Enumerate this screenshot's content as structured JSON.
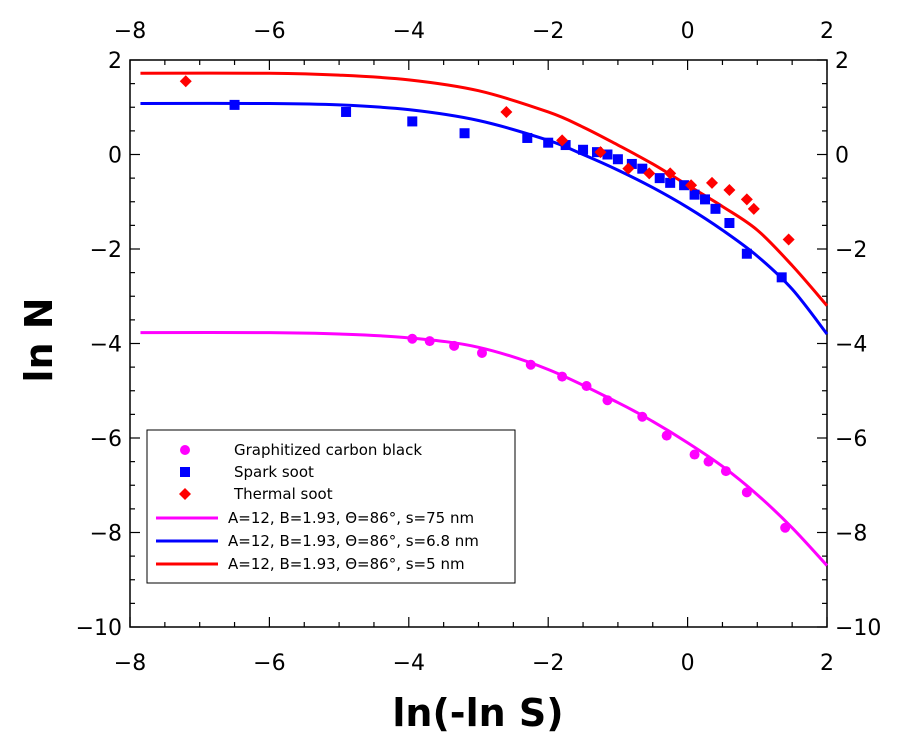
{
  "chart_data": {
    "type": "scatter",
    "xlabel": "ln(-ln S)",
    "ylabel": "ln N",
    "xlim": [
      -8,
      2
    ],
    "ylim": [
      -10,
      2
    ],
    "x_ticks": [
      -8,
      -6,
      -4,
      -2,
      0,
      2
    ],
    "y_ticks": [
      -10,
      -8,
      -6,
      -4,
      -2,
      0,
      2
    ],
    "x_tick_labels": [
      "−8",
      "−6",
      "−4",
      "−2",
      "0",
      "2"
    ],
    "y_tick_labels_left": [
      "−10",
      "−8",
      "−6",
      "−4",
      "−2",
      "0",
      "2"
    ],
    "y_tick_labels_right": [
      "−10",
      "−8",
      "−6",
      "−4",
      "−2",
      "0",
      "2"
    ],
    "grid": false,
    "legend_position": "bottom-left",
    "series": [
      {
        "name": "Graphitized carbon black",
        "kind": "points",
        "marker": "circle",
        "color": "#ff00ff",
        "x": [
          -3.95,
          -3.7,
          -3.35,
          -2.95,
          -2.25,
          -1.8,
          -1.45,
          -1.15,
          -0.65,
          -0.3,
          0.1,
          0.3,
          0.55,
          0.85,
          1.4
        ],
        "y": [
          -3.9,
          -3.95,
          -4.05,
          -4.2,
          -4.45,
          -4.7,
          -4.9,
          -5.2,
          -5.55,
          -5.95,
          -6.35,
          -6.5,
          -6.7,
          -7.15,
          -7.9
        ]
      },
      {
        "name": "Spark soot",
        "kind": "points",
        "marker": "square",
        "color": "#0000ff",
        "x": [
          -6.5,
          -4.9,
          -3.95,
          -3.2,
          -2.3,
          -2.0,
          -1.75,
          -1.5,
          -1.3,
          -1.15,
          -1.0,
          -0.8,
          -0.65,
          -0.4,
          -0.25,
          -0.05,
          0.1,
          0.25,
          0.4,
          0.6,
          0.85,
          1.35
        ],
        "y": [
          1.05,
          0.9,
          0.7,
          0.45,
          0.35,
          0.25,
          0.2,
          0.1,
          0.05,
          0.0,
          -0.1,
          -0.2,
          -0.3,
          -0.5,
          -0.6,
          -0.65,
          -0.85,
          -0.95,
          -1.15,
          -1.45,
          -2.1,
          -2.6
        ]
      },
      {
        "name": "Thermal soot",
        "kind": "points",
        "marker": "diamond",
        "color": "#ff0000",
        "x": [
          -7.2,
          -2.6,
          -1.8,
          -1.25,
          -0.85,
          -0.55,
          -0.25,
          0.05,
          0.35,
          0.6,
          0.85,
          0.95,
          1.45
        ],
        "y": [
          1.55,
          0.9,
          0.3,
          0.05,
          -0.3,
          -0.4,
          -0.4,
          -0.65,
          -0.6,
          -0.75,
          -0.95,
          -1.15,
          -1.8
        ]
      },
      {
        "name": "A=12, B=1.93, Θ=86°, s=75 nm",
        "kind": "line",
        "color": "#ff00ff",
        "x": [
          -7.85,
          -6,
          -5,
          -4,
          -3,
          -2,
          -1,
          -0.5,
          0,
          0.5,
          1,
          1.5,
          2
        ],
        "y": [
          -3.77,
          -3.77,
          -3.8,
          -3.88,
          -4.08,
          -4.55,
          -5.25,
          -5.65,
          -6.1,
          -6.6,
          -7.2,
          -7.9,
          -8.7
        ]
      },
      {
        "name": "A=12, B=1.93, Θ=86°, s=6.8 nm",
        "kind": "line",
        "color": "#0000ff",
        "x": [
          -7.85,
          -6,
          -5,
          -4,
          -3,
          -2,
          -1.5,
          -1,
          -0.5,
          0,
          0.5,
          1,
          1.5,
          2
        ],
        "y": [
          1.08,
          1.08,
          1.05,
          0.95,
          0.72,
          0.3,
          0.0,
          -0.33,
          -0.7,
          -1.12,
          -1.6,
          -2.15,
          -2.85,
          -3.8
        ]
      },
      {
        "name": "A=12, B=1.93, Θ=86°, s=5 nm",
        "kind": "line",
        "color": "#ff0000",
        "x": [
          -7.85,
          -6,
          -5,
          -4,
          -3,
          -2,
          -1.5,
          -1,
          -0.5,
          0,
          0.5,
          1,
          1.5,
          2
        ],
        "y": [
          1.72,
          1.72,
          1.68,
          1.58,
          1.35,
          0.9,
          0.58,
          0.2,
          -0.2,
          -0.65,
          -1.1,
          -1.6,
          -2.35,
          -3.2
        ]
      }
    ]
  }
}
